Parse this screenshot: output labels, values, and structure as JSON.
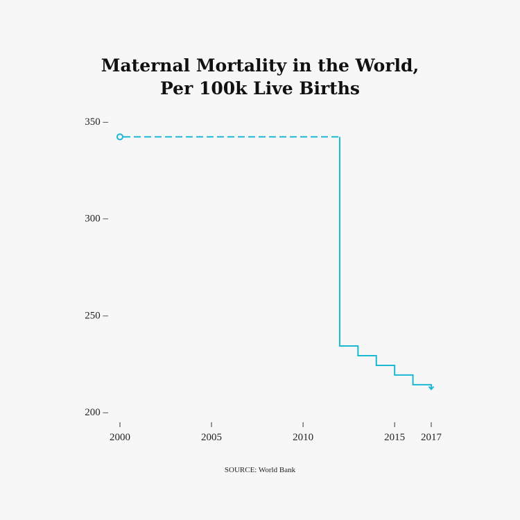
{
  "chart_data": {
    "type": "line",
    "title_line1": "Maternal Mortality in the World,",
    "title_line2": "Per 100k Live Births",
    "xlabel": "",
    "ylabel": "",
    "x": [
      2000,
      2012,
      2013,
      2014,
      2015,
      2016,
      2017
    ],
    "y": [
      342,
      234,
      229,
      224,
      219,
      214,
      212
    ],
    "dashed_until": 2012,
    "step": true,
    "start_marker": "open-circle",
    "end_marker": "arrow-down",
    "xlim": [
      2000,
      2017
    ],
    "ylim": [
      200,
      350
    ],
    "xticks": [
      2000,
      2005,
      2010,
      2015,
      2017
    ],
    "yticks": [
      200,
      250,
      300,
      350
    ],
    "xtick_labels": [
      "2000",
      "2005",
      "2010",
      "2015",
      "2017"
    ],
    "ytick_labels": [
      "200 –",
      "250 –",
      "300 –",
      "350 –"
    ],
    "line_color": "#1ab8d4",
    "grid": false,
    "source": "SOURCE: World Bank"
  }
}
